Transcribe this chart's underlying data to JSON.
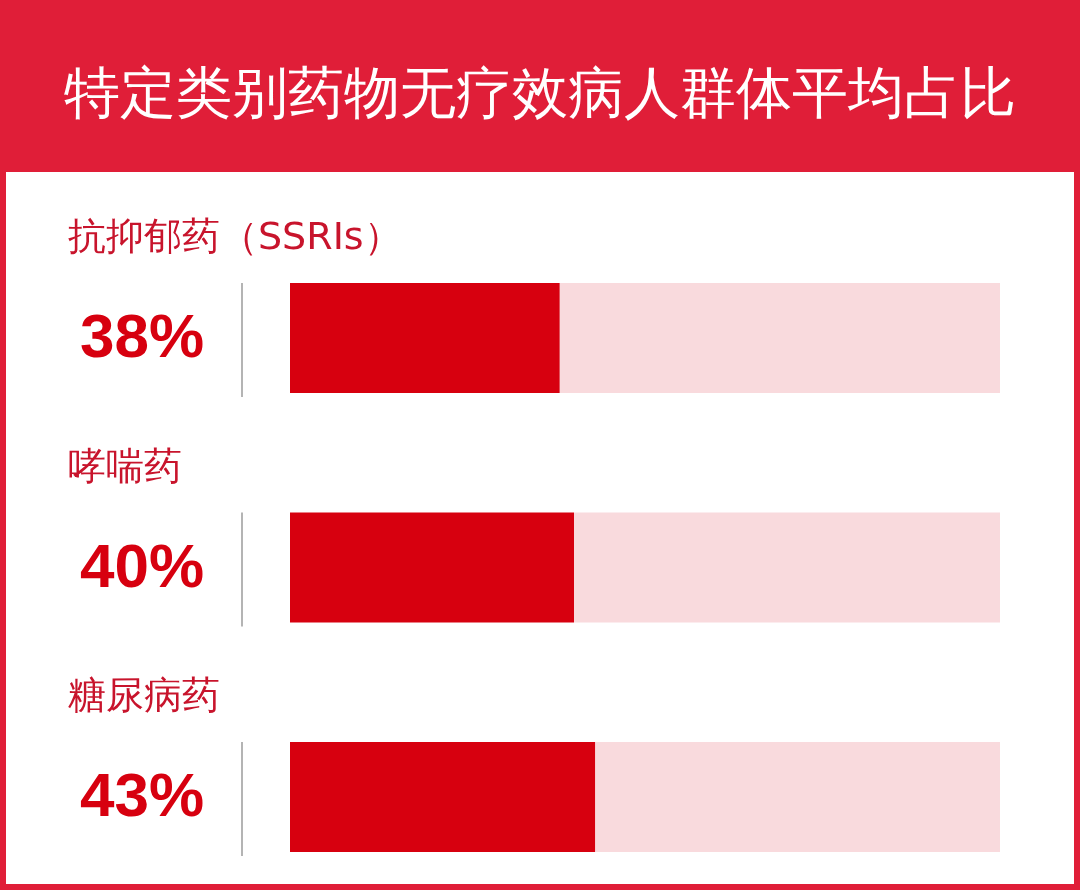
{
  "chart_data": {
    "type": "bar",
    "orientation": "horizontal",
    "stacked": true,
    "title": "特定类别药物无疗效病人群体平均占比",
    "categories": [
      "抗抑郁药（SSRIs）",
      "哮喘药",
      "糖尿病药"
    ],
    "series": [
      {
        "color": "#d7000f",
        "values": [
          38,
          40,
          43
        ],
        "value_labels": [
          "38%",
          "40%",
          "43%"
        ]
      },
      {
        "color": "#f9dadd",
        "values": [
          62,
          60,
          57
        ]
      }
    ],
    "xlim": [
      0,
      100
    ]
  }
}
